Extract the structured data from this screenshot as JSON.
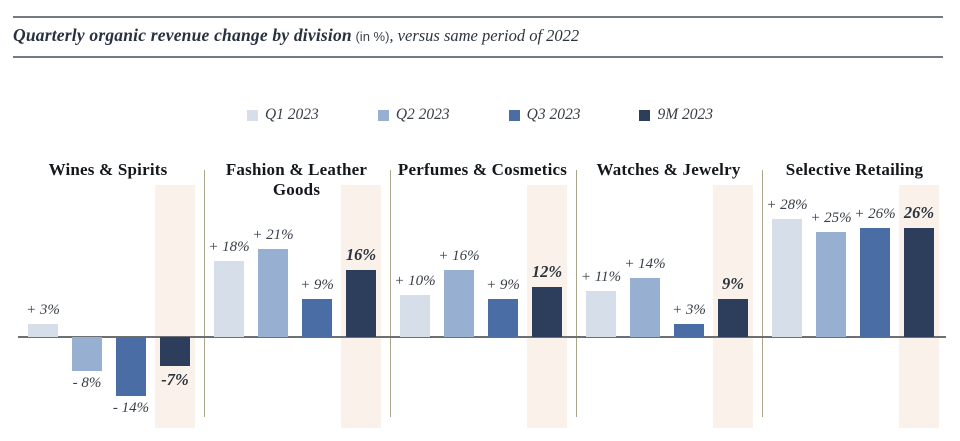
{
  "header": {
    "title_main": "Quarterly organic revenue change by division",
    "title_unit": " (in %)",
    "title_suffix": ", versus same period of 2022"
  },
  "legend": {
    "items": [
      {
        "label": "Q1 2023",
        "color": "#d6dee9"
      },
      {
        "label": "Q2 2023",
        "color": "#97afd1"
      },
      {
        "label": "Q3 2023",
        "color": "#4a6da6"
      },
      {
        "label": "9M 2023",
        "color": "#2c3e5c"
      }
    ]
  },
  "chart_data": {
    "type": "bar",
    "title": "Quarterly organic revenue change by division (in %), versus same period of 2022",
    "categories": [
      "Wines & Spirits",
      "Fashion & Leather Goods",
      "Perfumes & Cosmetics",
      "Watches & Jewelry",
      "Selective Retailing"
    ],
    "series": [
      {
        "name": "Q1 2023",
        "values": [
          3,
          18,
          10,
          11,
          28
        ]
      },
      {
        "name": "Q2 2023",
        "values": [
          -8,
          21,
          16,
          14,
          25
        ]
      },
      {
        "name": "Q3 2023",
        "values": [
          -14,
          9,
          9,
          3,
          26
        ]
      },
      {
        "name": "9M 2023",
        "values": [
          -7,
          16,
          12,
          9,
          26
        ]
      }
    ],
    "value_labels": [
      [
        "+ 3%",
        "+ 18%",
        "+ 10%",
        "+ 11%",
        "+ 28%"
      ],
      [
        "- 8%",
        "+ 21%",
        "+ 16%",
        "+ 14%",
        "+ 25%"
      ],
      [
        "- 14%",
        "+ 9%",
        "+ 9%",
        "+ 3%",
        "+ 26%"
      ],
      [
        "-7%",
        "16%",
        "12%",
        "9%",
        "26%"
      ]
    ],
    "emphasized_series": "9M 2023",
    "ylim": [
      -16,
      30
    ],
    "grid": false,
    "legend_position": "top",
    "baseline": 0
  },
  "colors": {
    "series": [
      "#d6dee9",
      "#97afd1",
      "#4a6da6",
      "#2c3e5c"
    ],
    "highlight_band": "#faf1ea",
    "divider": "#a9a68b",
    "axis": "#6e6f71",
    "rule": "#737a82",
    "title_text": "#27313f",
    "label_text": "#3a4049"
  }
}
